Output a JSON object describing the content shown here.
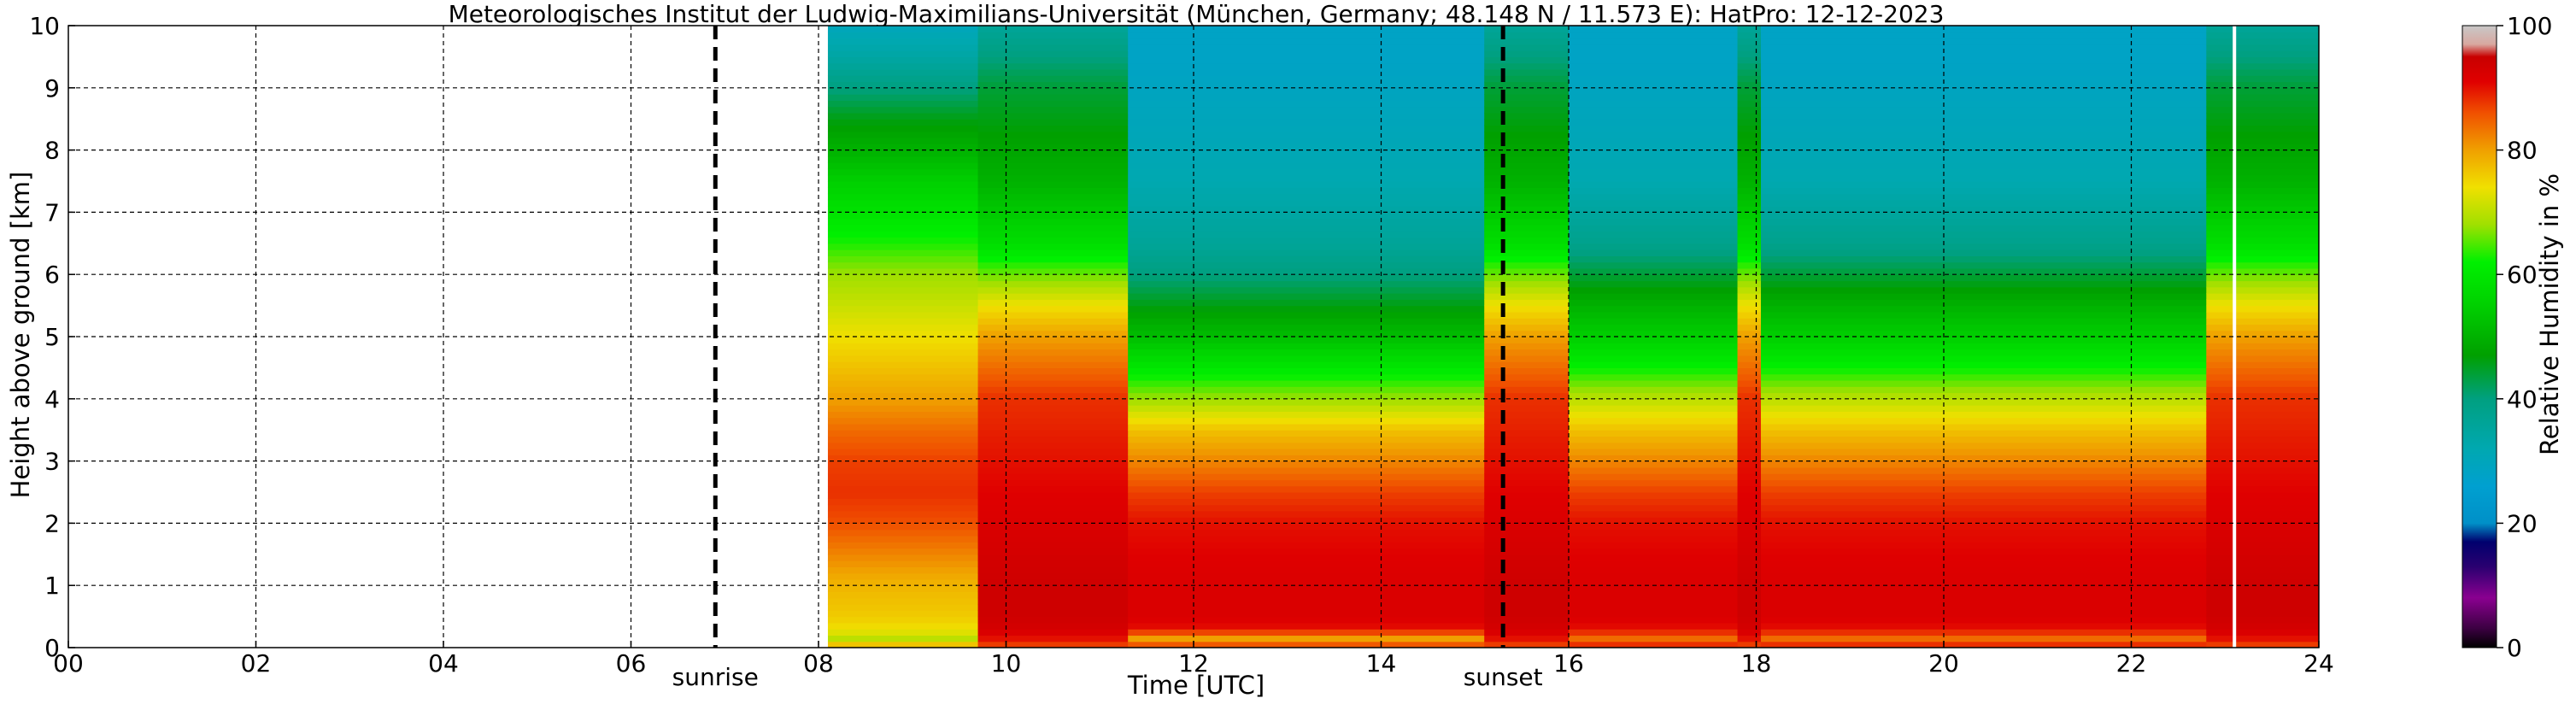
{
  "chart_data": {
    "type": "heatmap",
    "title": "Meteorologisches Institut der Ludwig-Maximilians-Universität (München, Germany; 48.148 N / 11.573 E):    HatPro: 12-12-2023",
    "xlabel": "Time [UTC]",
    "ylabel": "Height above ground [km]",
    "colorbar_label": "Relative Humidity in %",
    "xlim": [
      0,
      24
    ],
    "ylim": [
      0,
      10
    ],
    "x_ticks": [
      0,
      2,
      4,
      6,
      8,
      10,
      12,
      14,
      16,
      18,
      20,
      22,
      24
    ],
    "x_tick_labels": [
      "00",
      "02",
      "04",
      "06",
      "08",
      "10",
      "12",
      "14",
      "16",
      "18",
      "20",
      "22",
      "24"
    ],
    "y_ticks": [
      0,
      1,
      2,
      3,
      4,
      5,
      6,
      7,
      8,
      9,
      10
    ],
    "y_tick_labels": [
      "0",
      "1",
      "2",
      "3",
      "4",
      "5",
      "6",
      "7",
      "8",
      "9",
      "10"
    ],
    "grid": true,
    "colorbar_ticks": [
      0,
      20,
      40,
      60,
      80,
      100
    ],
    "colorbar_tick_labels": [
      "0",
      "20",
      "40",
      "60",
      "80",
      "100"
    ],
    "colormap_stops": [
      {
        "value": 0,
        "color": "#000000"
      },
      {
        "value": 3,
        "color": "#3a0040"
      },
      {
        "value": 8,
        "color": "#8a0090"
      },
      {
        "value": 13,
        "color": "#2a0070"
      },
      {
        "value": 17,
        "color": "#00006e"
      },
      {
        "value": 20,
        "color": "#0090c8"
      },
      {
        "value": 26,
        "color": "#00a0d0"
      },
      {
        "value": 32,
        "color": "#00a8b0"
      },
      {
        "value": 40,
        "color": "#00a080"
      },
      {
        "value": 47,
        "color": "#00a000"
      },
      {
        "value": 55,
        "color": "#00d000"
      },
      {
        "value": 62,
        "color": "#00f000"
      },
      {
        "value": 68,
        "color": "#a0e000"
      },
      {
        "value": 74,
        "color": "#f0e000"
      },
      {
        "value": 80,
        "color": "#f0a000"
      },
      {
        "value": 86,
        "color": "#f05000"
      },
      {
        "value": 91,
        "color": "#e00000"
      },
      {
        "value": 95,
        "color": "#c80000"
      },
      {
        "value": 97,
        "color": "#d8a8a0"
      },
      {
        "value": 100,
        "color": "#c8c8c8"
      }
    ],
    "data_start_time": 8.1,
    "data_end_time": 24,
    "gap_time": 23.1,
    "annotations": [
      {
        "label": "sunrise",
        "time": 6.9
      },
      {
        "label": "sunset",
        "time": 15.3
      }
    ],
    "humidity_profile_template": {
      "heights_km": [
        0,
        0.15,
        0.3,
        0.5,
        1,
        1.5,
        2,
        2.5,
        3,
        3.5,
        4,
        4.5,
        5,
        5.5,
        6,
        6.5,
        7,
        7.5,
        8,
        8.5,
        9,
        9.5,
        10
      ],
      "moderate": [
        90,
        84,
        90,
        92,
        92,
        91,
        90,
        87,
        82,
        77,
        70,
        62,
        55,
        50,
        44,
        38,
        35,
        32,
        31,
        30,
        29,
        28,
        28
      ],
      "dry_upper": [
        88,
        80,
        90,
        92,
        92,
        91,
        90,
        87,
        82,
        77,
        68,
        60,
        52,
        46,
        40,
        36,
        34,
        32,
        31,
        30,
        29,
        28,
        28
      ],
      "morning": [
        80,
        70,
        74,
        76,
        78,
        82,
        86,
        88,
        87,
        84,
        80,
        77,
        74,
        71,
        68,
        63,
        59,
        55,
        50,
        46,
        40,
        34,
        30
      ],
      "wet_column": [
        86,
        90,
        93,
        94,
        94,
        93,
        92,
        91,
        90,
        89,
        88,
        84,
        80,
        74,
        66,
        58,
        54,
        50,
        48,
        46,
        44,
        40,
        36
      ]
    },
    "time_segments": [
      {
        "t0": 8.1,
        "t1": 9.7,
        "profile": "morning"
      },
      {
        "t0": 9.7,
        "t1": 11.3,
        "profile": "wet_column"
      },
      {
        "t0": 11.3,
        "t1": 15.1,
        "profile": "dry_upper"
      },
      {
        "t0": 15.1,
        "t1": 16.0,
        "profile": "wet_column"
      },
      {
        "t0": 16.0,
        "t1": 17.8,
        "profile": "moderate"
      },
      {
        "t0": 17.8,
        "t1": 18.05,
        "profile": "wet_column"
      },
      {
        "t0": 18.05,
        "t1": 22.8,
        "profile": "moderate"
      },
      {
        "t0": 22.8,
        "t1": 24.0,
        "profile": "wet_column"
      }
    ]
  }
}
